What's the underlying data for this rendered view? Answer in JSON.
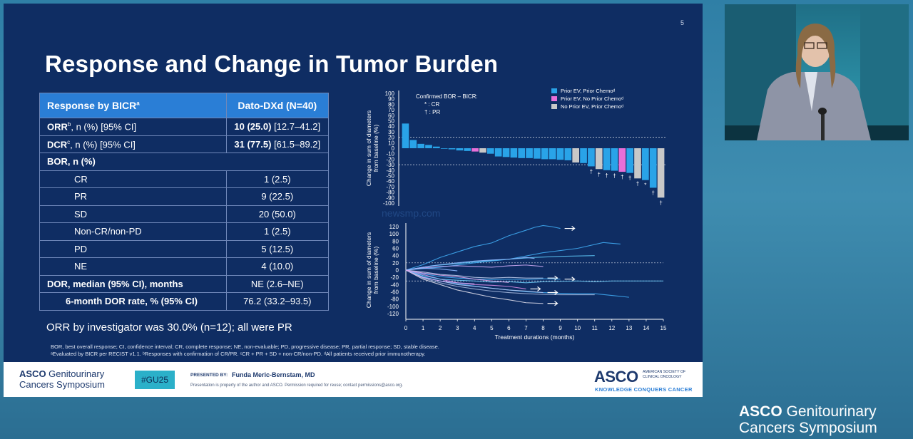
{
  "slide": {
    "number": "5",
    "title": "Response and Change in Tumor Burden",
    "table": {
      "header": {
        "col1": "Response by BICR",
        "col1_sup": "a",
        "col2": "Dato-DXd (N=40)"
      },
      "orr": {
        "label": "ORR",
        "sup": "b",
        "rest": ", n (%) [95% CI]",
        "value_bold": "10 (25.0)",
        "value_rest": " [12.7–41.2]"
      },
      "dcr": {
        "label": "DCR",
        "sup": "c",
        "rest": ", n (%) [95% CI]",
        "value_bold": "31 (77.5)",
        "value_rest": " [61.5–89.2]"
      },
      "bor_label": "BOR, n (%)",
      "bor_rows": [
        {
          "label": "CR",
          "value": "1 (2.5)"
        },
        {
          "label": "PR",
          "value": "9 (22.5)"
        },
        {
          "label": "SD",
          "value": "20 (50.0)"
        },
        {
          "label": "Non-CR/non-PD",
          "value": "1 (2.5)"
        },
        {
          "label": "PD",
          "value": "5 (12.5)"
        },
        {
          "label": "NE",
          "value": "4 (10.0)"
        }
      ],
      "dor": {
        "label": "DOR, median (95% CI), months",
        "value": "NE (2.6–NE)"
      },
      "dor6": {
        "label": "6-month DOR rate, % (95% CI)",
        "value": "76.2 (33.2–93.5)"
      }
    },
    "orr_note": "ORR by investigator was 30.0% (n=12); all were PR",
    "footnote_line1": "BOR, best overall response; CI, confidence interval; CR, complete response; NE, non-evaluable; PD, progressive disease; PR, partial response; SD, stable disease.",
    "footnote_line2": "ᵃEvaluated by BICR per RECIST v1.1. ᵇResponses with confirmation of CR/PR. ᶜCR + PR + SD + non-CR/non-PD. ᵈAll patients received prior immunotherapy.",
    "watermark": "newsmp.com"
  },
  "chart_data": [
    {
      "type": "bar",
      "ylabel": "Change in sum of diameters from baseline (%)",
      "ylim": [
        -100,
        100
      ],
      "yticks": [
        "100",
        "90",
        "80",
        "70",
        "60",
        "50",
        "40",
        "30",
        "20",
        "10",
        "0",
        "-10",
        "-20",
        "-30",
        "-40",
        "-50",
        "-60",
        "-70",
        "-80",
        "-90",
        "-100"
      ],
      "reference_lines": [
        20,
        -30
      ],
      "legend_title": "Confirmed BOR – BICR:",
      "bor_keys": [
        {
          "symbol": "*",
          "label": "CR"
        },
        {
          "symbol": "†",
          "label": "PR"
        }
      ],
      "legend": [
        {
          "label": "Prior EV, Prior Chemoᵈ",
          "color": "#29a3e8"
        },
        {
          "label": "Prior EV, No Prior Chemoᵈ",
          "color": "#e86fd8"
        },
        {
          "label": "No Prior EV, Prior Chemoᵈ",
          "color": "#c8c8c8"
        }
      ],
      "bars": [
        {
          "value": 45,
          "group": 0,
          "mark": ""
        },
        {
          "value": 15,
          "group": 0,
          "mark": ""
        },
        {
          "value": 8,
          "group": 0,
          "mark": ""
        },
        {
          "value": 6,
          "group": 0,
          "mark": ""
        },
        {
          "value": 3,
          "group": 0,
          "mark": ""
        },
        {
          "value": 0,
          "group": 0,
          "mark": ""
        },
        {
          "value": -2,
          "group": 0,
          "mark": ""
        },
        {
          "value": -4,
          "group": 0,
          "mark": ""
        },
        {
          "value": -5,
          "group": 0,
          "mark": ""
        },
        {
          "value": -6,
          "group": 1,
          "mark": ""
        },
        {
          "value": -8,
          "group": 2,
          "mark": ""
        },
        {
          "value": -10,
          "group": 0,
          "mark": ""
        },
        {
          "value": -15,
          "group": 0,
          "mark": ""
        },
        {
          "value": -16,
          "group": 0,
          "mark": ""
        },
        {
          "value": -17,
          "group": 0,
          "mark": ""
        },
        {
          "value": -18,
          "group": 0,
          "mark": ""
        },
        {
          "value": -18,
          "group": 0,
          "mark": ""
        },
        {
          "value": -19,
          "group": 0,
          "mark": ""
        },
        {
          "value": -20,
          "group": 0,
          "mark": ""
        },
        {
          "value": -20,
          "group": 0,
          "mark": ""
        },
        {
          "value": -21,
          "group": 0,
          "mark": ""
        },
        {
          "value": -22,
          "group": 0,
          "mark": ""
        },
        {
          "value": -26,
          "group": 2,
          "mark": ""
        },
        {
          "value": -27,
          "group": 0,
          "mark": ""
        },
        {
          "value": -33,
          "group": 0,
          "mark": "†"
        },
        {
          "value": -38,
          "group": 2,
          "mark": "†"
        },
        {
          "value": -40,
          "group": 0,
          "mark": "†"
        },
        {
          "value": -41,
          "group": 0,
          "mark": "†"
        },
        {
          "value": -43,
          "group": 1,
          "mark": "†"
        },
        {
          "value": -45,
          "group": 0,
          "mark": "†"
        },
        {
          "value": -55,
          "group": 2,
          "mark": "†"
        },
        {
          "value": -58,
          "group": 0,
          "mark": "*"
        },
        {
          "value": -72,
          "group": 0,
          "mark": "†"
        },
        {
          "value": -90,
          "group": 2,
          "mark": "†"
        }
      ]
    },
    {
      "type": "line",
      "xlabel": "Treatment durations (months)",
      "ylabel": "Change in sum of diameters from baseline (%)",
      "xlim": [
        0,
        15
      ],
      "ylim": [
        -120,
        120
      ],
      "xticks": [
        "0",
        "1",
        "2",
        "3",
        "4",
        "5",
        "6",
        "7",
        "8",
        "9",
        "10",
        "11",
        "12",
        "13",
        "14",
        "15"
      ],
      "yticks": [
        "120",
        "100",
        "80",
        "60",
        "40",
        "20",
        "0",
        "-20",
        "-40",
        "-60",
        "-80",
        "-100",
        "-120"
      ],
      "reference_lines": [
        20,
        -30
      ],
      "series": [
        {
          "x": [
            0,
            1,
            2,
            3,
            4,
            5,
            6,
            7,
            7.5,
            8,
            8.5,
            9
          ],
          "y": [
            0,
            15,
            35,
            50,
            65,
            75,
            95,
            110,
            118,
            123,
            120,
            115
          ],
          "arrow": true
        },
        {
          "x": [
            0,
            2,
            4,
            6,
            8,
            10,
            11.5,
            12.5
          ],
          "y": [
            0,
            8,
            20,
            30,
            48,
            60,
            76,
            72
          ],
          "arrow": false
        },
        {
          "x": [
            0,
            1.5,
            3,
            4.5,
            6,
            7.5,
            9,
            11
          ],
          "y": [
            0,
            12,
            18,
            25,
            30,
            35,
            38,
            40
          ],
          "arrow": false
        },
        {
          "x": [
            0,
            1,
            2,
            3,
            4,
            5,
            6,
            7,
            7.5
          ],
          "y": [
            0,
            8,
            15,
            20,
            25,
            28,
            30,
            35,
            32
          ],
          "arrow": false
        },
        {
          "x": [
            0,
            1,
            2,
            3,
            4,
            5,
            6,
            7,
            8
          ],
          "y": [
            0,
            6,
            10,
            12,
            10,
            8,
            12,
            14,
            10
          ],
          "arrow": false
        },
        {
          "x": [
            0,
            1,
            2,
            3,
            4,
            5,
            6,
            7,
            8
          ],
          "y": [
            0,
            -5,
            -12,
            -15,
            -20,
            -22,
            -20,
            -22,
            -22
          ],
          "arrow": true
        },
        {
          "x": [
            0,
            1,
            2,
            3,
            4,
            5,
            6,
            7,
            8,
            9
          ],
          "y": [
            0,
            -10,
            -18,
            -22,
            -25,
            -26,
            -25,
            -26,
            -24,
            -25
          ],
          "arrow": true
        },
        {
          "x": [
            0,
            1,
            2,
            3,
            4,
            5,
            6,
            7
          ],
          "y": [
            0,
            -12,
            -25,
            -35,
            -40,
            -42,
            -45,
            -52
          ],
          "arrow": true
        },
        {
          "x": [
            0,
            1,
            2,
            3,
            4,
            5,
            6,
            7,
            8,
            10,
            11,
            12,
            13,
            14,
            15
          ],
          "y": [
            0,
            -15,
            -25,
            -28,
            -30,
            -33,
            -32,
            -35,
            -32,
            -30,
            -32,
            -30,
            -30,
            -30,
            -30
          ],
          "arrow": false
        },
        {
          "x": [
            0,
            1,
            2,
            3,
            4,
            5,
            6,
            7,
            8,
            9,
            10,
            11,
            12,
            13
          ],
          "y": [
            0,
            -18,
            -30,
            -38,
            -44,
            -50,
            -55,
            -60,
            -62,
            -64,
            -65,
            -65,
            -70,
            -75
          ],
          "arrow": false
        },
        {
          "x": [
            0,
            1,
            2,
            3,
            4,
            5,
            6,
            7,
            8,
            9,
            10,
            11
          ],
          "y": [
            0,
            -22,
            -35,
            -45,
            -52,
            -58,
            -62,
            -65,
            -67,
            -68,
            -68,
            -68
          ],
          "arrow": false
        },
        {
          "x": [
            0,
            1,
            2,
            3,
            4,
            5,
            6,
            7,
            8
          ],
          "y": [
            0,
            -25,
            -40,
            -55,
            -65,
            -75,
            -82,
            -90,
            -92
          ],
          "arrow": true
        },
        {
          "x": [
            0,
            1,
            2,
            3,
            4,
            5,
            6,
            7,
            8
          ],
          "y": [
            0,
            -20,
            -30,
            -40,
            -45,
            -50,
            -55,
            -58,
            -62
          ],
          "arrow": true
        },
        {
          "x": [
            0,
            0.5,
            1,
            2,
            3,
            4
          ],
          "y": [
            0,
            -10,
            -20,
            -30,
            -35,
            -38
          ],
          "arrow": false
        },
        {
          "x": [
            0,
            1,
            2,
            3
          ],
          "y": [
            0,
            5,
            3,
            -2
          ],
          "arrow": false
        },
        {
          "x": [
            0,
            1,
            2,
            3,
            4,
            5,
            6
          ],
          "y": [
            0,
            -8,
            -14,
            -18,
            -25,
            -30,
            -34
          ],
          "arrow": false
        }
      ]
    }
  ],
  "footer": {
    "asco_line1_bold": "ASCO",
    "asco_line1_rest": " Genitourinary",
    "asco_line2": "Cancers Symposium",
    "hashtag": "#GU25",
    "presented_by": "PRESENTED BY:",
    "presenter": "Funda Meric-Bernstam, MD",
    "property_note": "Presentation is property of the author and ASCO. Permission required for reuse; contact permissions@asco.org.",
    "logo": "ASCO",
    "society_line1": "AMERICAN SOCIETY OF",
    "society_line2": "CLINICAL ONCOLOGY",
    "tagline": "KNOWLEDGE CONQUERS CANCER"
  },
  "branding": {
    "line1_bold": "ASCO",
    "line1_rest": " Genitourinary",
    "line2": "Cancers Symposium"
  }
}
